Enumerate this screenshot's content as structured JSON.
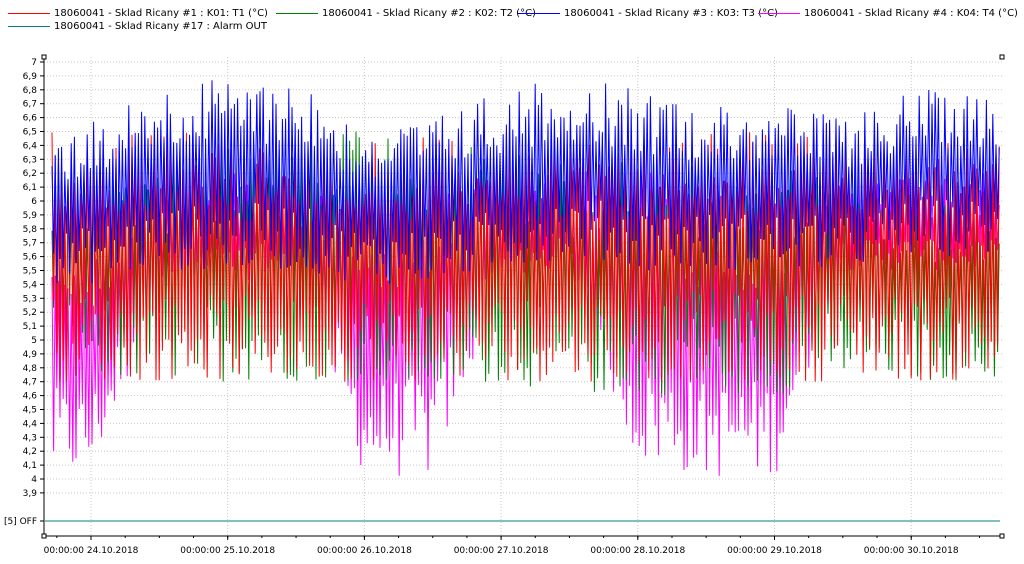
{
  "legend": [
    {
      "label": "18060041 - Sklad Ricany #1 : K01: T1 (°C)",
      "color": "#ff0000"
    },
    {
      "label": "18060041 - Sklad Ricany #2 : K02: T2 (°C)",
      "color": "#008000"
    },
    {
      "label": "18060041 - Sklad Ricany #3 : K03: T3 (°C)",
      "color": "#0000ff"
    },
    {
      "label": "18060041 - Sklad Ricany #4 : K04: T4 (°C)",
      "color": "#ff00ff"
    },
    {
      "label": "18060041 - Sklad Ricany #17 : Alarm OUT",
      "color": "#008080"
    }
  ],
  "chart_data": {
    "type": "line",
    "title": "",
    "xlabel": "",
    "ylabel": "",
    "ylim": [
      3.8,
      7.0
    ],
    "y_ticks": [
      "7",
      "6,9",
      "6,8",
      "6,7",
      "6,6",
      "6,5",
      "6,4",
      "6,3",
      "6,2",
      "6,1",
      "6",
      "5,9",
      "5,8",
      "5,7",
      "5,6",
      "5,5",
      "5,4",
      "5,3",
      "5,2",
      "5,1",
      "5",
      "4,9",
      "4,8",
      "4,7",
      "4,6",
      "4,5",
      "4,4",
      "4,3",
      "4,2",
      "4,1",
      "4",
      "3,9"
    ],
    "alarm_axis_label": "[5] OFF",
    "x_range": [
      "2018-10-23 08:00",
      "2018-10-30 21:00"
    ],
    "x_ticks": [
      "00:00:00 24.10.2018",
      "00:00:00 25.10.2018",
      "00:00:00 26.10.2018",
      "00:00:00 27.10.2018",
      "00:00:00 28.10.2018",
      "00:00:00 29.10.2018",
      "00:00:00 30.10.2018"
    ],
    "grid": true,
    "legend_position": "top-left",
    "series": [
      {
        "name": "18060041 - Sklad Ricany #1 : K01: T1 (°C)",
        "color": "#ff0000",
        "x": [
          "2018-10-23 08:00",
          "2018-10-24 00:00",
          "2018-10-24 12:00",
          "2018-10-25 00:00",
          "2018-10-25 12:00",
          "2018-10-26 00:00",
          "2018-10-26 12:00",
          "2018-10-27 00:00",
          "2018-10-27 12:00",
          "2018-10-28 00:00",
          "2018-10-28 12:00",
          "2018-10-29 00:00",
          "2018-10-29 12:00",
          "2018-10-30 00:00",
          "2018-10-30 12:00",
          "2018-10-30 21:00"
        ],
        "min": [
          4.7,
          4.7,
          4.7,
          4.7,
          4.7,
          4.7,
          4.7,
          4.7,
          4.7,
          4.7,
          4.7,
          4.7,
          4.7,
          4.7,
          4.7,
          4.6
        ],
        "max": [
          6.6,
          6.5,
          6.5,
          6.5,
          6.4,
          6.5,
          6.5,
          6.5,
          6.5,
          6.4,
          6.6,
          6.5,
          6.6,
          6.5,
          6.4,
          6.4
        ]
      },
      {
        "name": "18060041 - Sklad Ricany #2 : K02: T2 (°C)",
        "color": "#008000",
        "x": [
          "2018-10-23 08:00",
          "2018-10-24 00:00",
          "2018-10-24 12:00",
          "2018-10-25 00:00",
          "2018-10-25 12:00",
          "2018-10-26 00:00",
          "2018-10-26 12:00",
          "2018-10-27 00:00",
          "2018-10-27 12:00",
          "2018-10-28 00:00",
          "2018-10-28 12:00",
          "2018-10-29 00:00",
          "2018-10-29 12:00",
          "2018-10-30 00:00",
          "2018-10-30 12:00",
          "2018-10-30 21:00"
        ],
        "min": [
          4.7,
          4.7,
          4.7,
          4.7,
          4.7,
          4.7,
          4.6,
          4.7,
          4.6,
          4.6,
          4.6,
          4.6,
          4.7,
          4.7,
          4.7,
          4.6
        ],
        "max": [
          6.4,
          6.3,
          6.3,
          6.4,
          6.5,
          6.5,
          6.4,
          6.4,
          6.3,
          6.3,
          6.3,
          6.3,
          6.3,
          6.0,
          6.0,
          6.0
        ]
      },
      {
        "name": "18060041 - Sklad Ricany #3 : K03: T3 (°C)",
        "color": "#0000ff",
        "x": [
          "2018-10-23 08:00",
          "2018-10-24 00:00",
          "2018-10-24 12:00",
          "2018-10-25 00:00",
          "2018-10-25 12:00",
          "2018-10-26 00:00",
          "2018-10-26 12:00",
          "2018-10-27 00:00",
          "2018-10-27 12:00",
          "2018-10-28 00:00",
          "2018-10-28 12:00",
          "2018-10-29 00:00",
          "2018-10-29 12:00",
          "2018-10-30 00:00",
          "2018-10-30 12:00",
          "2018-10-30 21:00"
        ],
        "min": [
          5.4,
          5.4,
          5.5,
          5.5,
          5.5,
          5.4,
          5.4,
          5.5,
          5.6,
          5.5,
          5.5,
          5.5,
          5.5,
          5.6,
          5.6,
          5.6
        ],
        "max": [
          6.3,
          6.6,
          6.8,
          6.9,
          6.9,
          6.5,
          6.6,
          6.8,
          6.9,
          6.8,
          6.7,
          6.7,
          6.6,
          6.8,
          6.8,
          6.5
        ]
      },
      {
        "name": "18060041 - Sklad Ricany #4 : K04: T4 (°C)",
        "color": "#ff00ff",
        "x": [
          "2018-10-23 08:00",
          "2018-10-24 00:00",
          "2018-10-24 12:00",
          "2018-10-25 00:00",
          "2018-10-25 12:00",
          "2018-10-26 00:00",
          "2018-10-26 12:00",
          "2018-10-27 00:00",
          "2018-10-27 12:00",
          "2018-10-28 00:00",
          "2018-10-28 12:00",
          "2018-10-29 00:00",
          "2018-10-29 12:00",
          "2018-10-30 00:00",
          "2018-10-30 12:00",
          "2018-10-30 21:00"
        ],
        "min": [
          4.0,
          4.0,
          5.3,
          5.4,
          5.5,
          4.0,
          4.0,
          5.4,
          5.5,
          4.1,
          4.0,
          4.0,
          5.5,
          5.5,
          5.5,
          5.6
        ],
        "max": [
          6.0,
          5.8,
          6.2,
          6.2,
          6.2,
          6.0,
          6.2,
          6.2,
          6.2,
          6.3,
          6.0,
          6.1,
          6.2,
          6.2,
          6.2,
          6.2
        ]
      },
      {
        "name": "18060041 - Sklad Ricany #17 : Alarm OUT",
        "color": "#008080",
        "x": [
          "2018-10-23 08:00",
          "2018-10-30 21:00"
        ],
        "values": [
          "OFF",
          "OFF"
        ]
      }
    ]
  }
}
